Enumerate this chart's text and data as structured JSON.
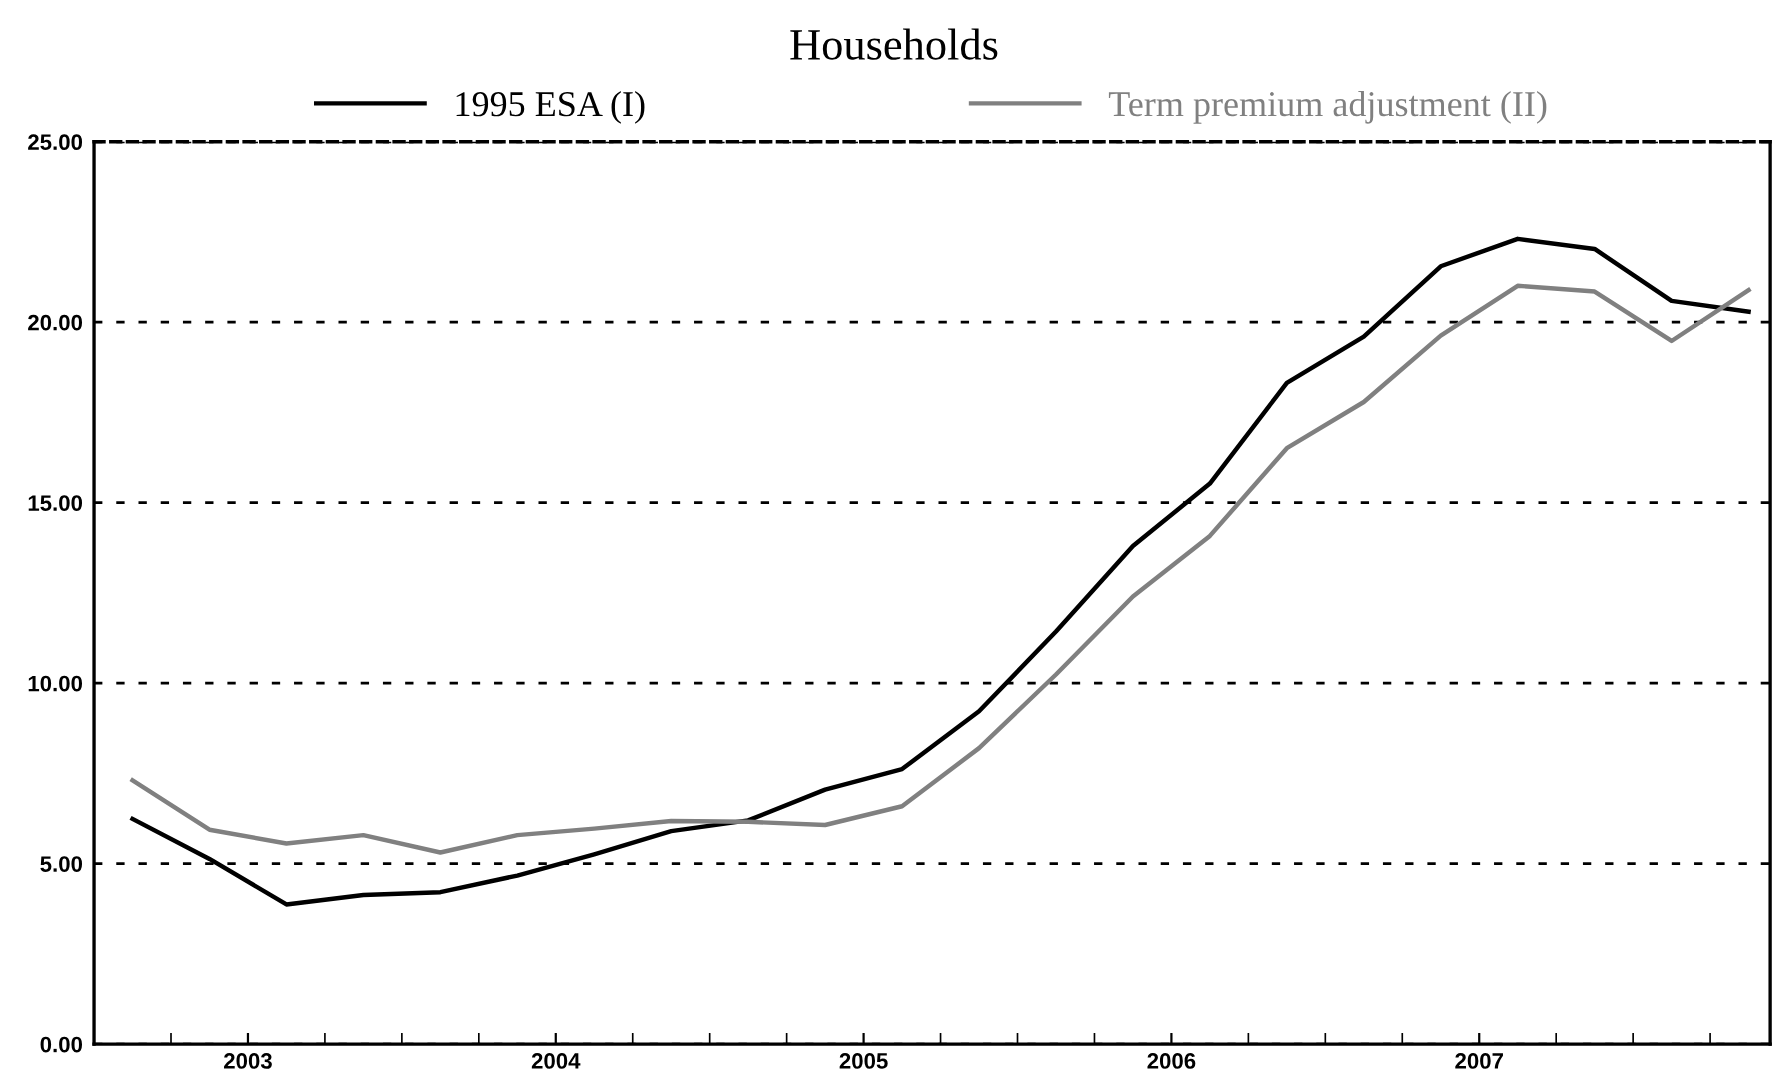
{
  "chart_data": {
    "type": "line",
    "title": "Households",
    "x": [
      2003.0,
      2003.25,
      2003.5,
      2003.75,
      2004.0,
      2004.25,
      2004.5,
      2004.75,
      2005.0,
      2005.25,
      2005.5,
      2005.75,
      2006.0,
      2006.25,
      2006.5,
      2006.75,
      2007.0,
      2007.25,
      2007.5,
      2007.75,
      2008.0,
      2008.25
    ],
    "series": [
      {
        "name": "1995 ESA (I)",
        "color": "#000000",
        "values": [
          6.24,
          5.13,
          3.87,
          4.13,
          4.21,
          4.67,
          5.26,
          5.9,
          6.2,
          7.05,
          7.62,
          9.22,
          11.43,
          13.8,
          15.53,
          18.32,
          19.6,
          21.55,
          22.31,
          22.03,
          20.59,
          20.29
        ]
      },
      {
        "name": "Term premium adjustment (II)",
        "color": "#808080",
        "values": [
          7.31,
          5.94,
          5.56,
          5.79,
          5.31,
          5.79,
          5.97,
          6.18,
          6.16,
          6.07,
          6.59,
          8.2,
          10.24,
          12.4,
          14.08,
          16.51,
          17.79,
          19.63,
          21.01,
          20.85,
          19.48,
          20.89
        ]
      }
    ],
    "xlim": [
      2002.875,
      2008.32
    ],
    "xticks": [
      {
        "value": 2003.375,
        "label": "2003"
      },
      {
        "value": 2004.375,
        "label": "2004"
      },
      {
        "value": 2005.375,
        "label": "2005"
      },
      {
        "value": 2006.375,
        "label": "2006"
      },
      {
        "value": 2007.375,
        "label": "2007"
      },
      {
        "value": 2003.125,
        "label": null
      },
      {
        "value": 2003.625,
        "label": null
      },
      {
        "value": 2003.875,
        "label": null
      },
      {
        "value": 2004.125,
        "label": null
      },
      {
        "value": 2004.625,
        "label": null
      },
      {
        "value": 2004.875,
        "label": null
      },
      {
        "value": 2005.125,
        "label": null
      },
      {
        "value": 2005.625,
        "label": null
      },
      {
        "value": 2005.875,
        "label": null
      },
      {
        "value": 2006.125,
        "label": null
      },
      {
        "value": 2006.625,
        "label": null
      },
      {
        "value": 2006.875,
        "label": null
      },
      {
        "value": 2007.125,
        "label": null
      },
      {
        "value": 2007.625,
        "label": null
      },
      {
        "value": 2007.875,
        "label": null
      },
      {
        "value": 2008.125,
        "label": null
      }
    ],
    "ylim": [
      0,
      25
    ],
    "yticks": [
      {
        "value": 0,
        "label": "0.00"
      },
      {
        "value": 5,
        "label": "5.00"
      },
      {
        "value": 10,
        "label": "10.00"
      },
      {
        "value": 15,
        "label": "15.00"
      },
      {
        "value": 20,
        "label": "20.00"
      },
      {
        "value": 25,
        "label": "25.00"
      }
    ],
    "grid": "y",
    "legend": "top",
    "marker": "none",
    "line_style": "solid"
  }
}
